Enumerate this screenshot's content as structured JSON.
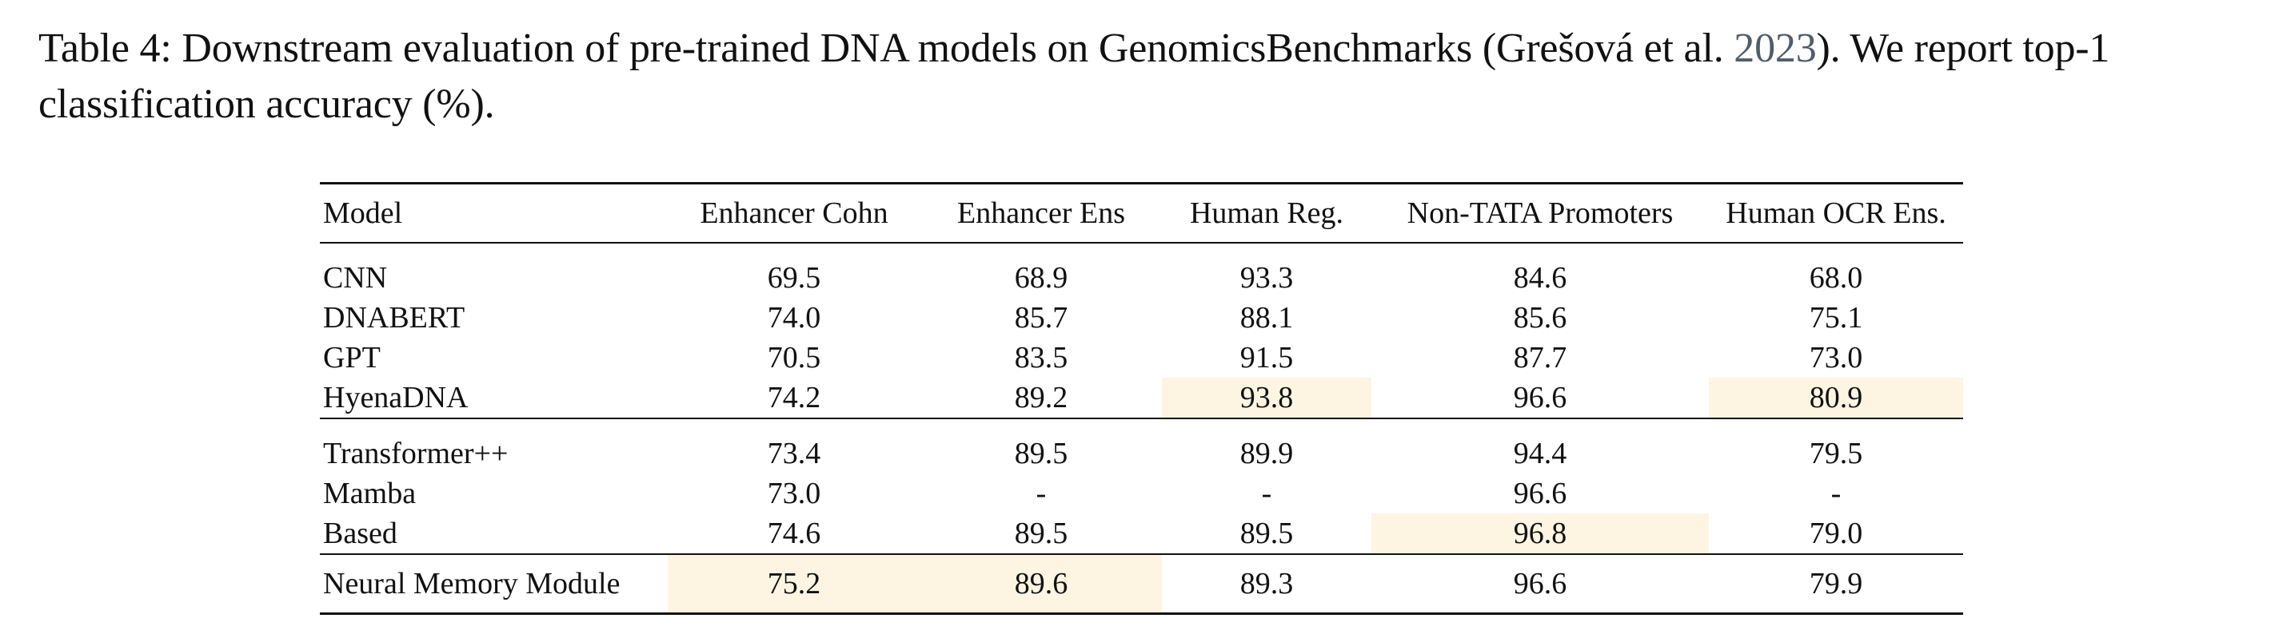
{
  "caption": {
    "prefix": "Table 4: Downstream evaluation of pre-trained DNA models on GenomicsBenchmarks (Grešová et al. ",
    "year": "2023",
    "suffix": "). We report top-1 classification accuracy (%)."
  },
  "table": {
    "headers": [
      "Model",
      "Enhancer Cohn",
      "Enhancer Ens",
      "Human Reg.",
      "Non-TATA Promoters",
      "Human OCR Ens."
    ],
    "rows": [
      [
        "CNN",
        "69.5",
        "68.9",
        "93.3",
        "84.6",
        "68.0"
      ],
      [
        "DNABERT",
        "74.0",
        "85.7",
        "88.1",
        "85.6",
        "75.1"
      ],
      [
        "GPT",
        "70.5",
        "83.5",
        "91.5",
        "87.7",
        "73.0"
      ],
      [
        "HyenaDNA",
        "74.2",
        "89.2",
        "93.8",
        "96.6",
        "80.9"
      ],
      [
        "Transformer++",
        "73.4",
        "89.5",
        "89.9",
        "94.4",
        "79.5"
      ],
      [
        "Mamba",
        "73.0",
        "-",
        "-",
        "96.6",
        "-"
      ],
      [
        "Based",
        "74.6",
        "89.5",
        "89.5",
        "96.8",
        "79.0"
      ],
      [
        "Neural Memory Module",
        "75.2",
        "89.6",
        "89.3",
        "96.6",
        "79.9"
      ]
    ]
  }
}
